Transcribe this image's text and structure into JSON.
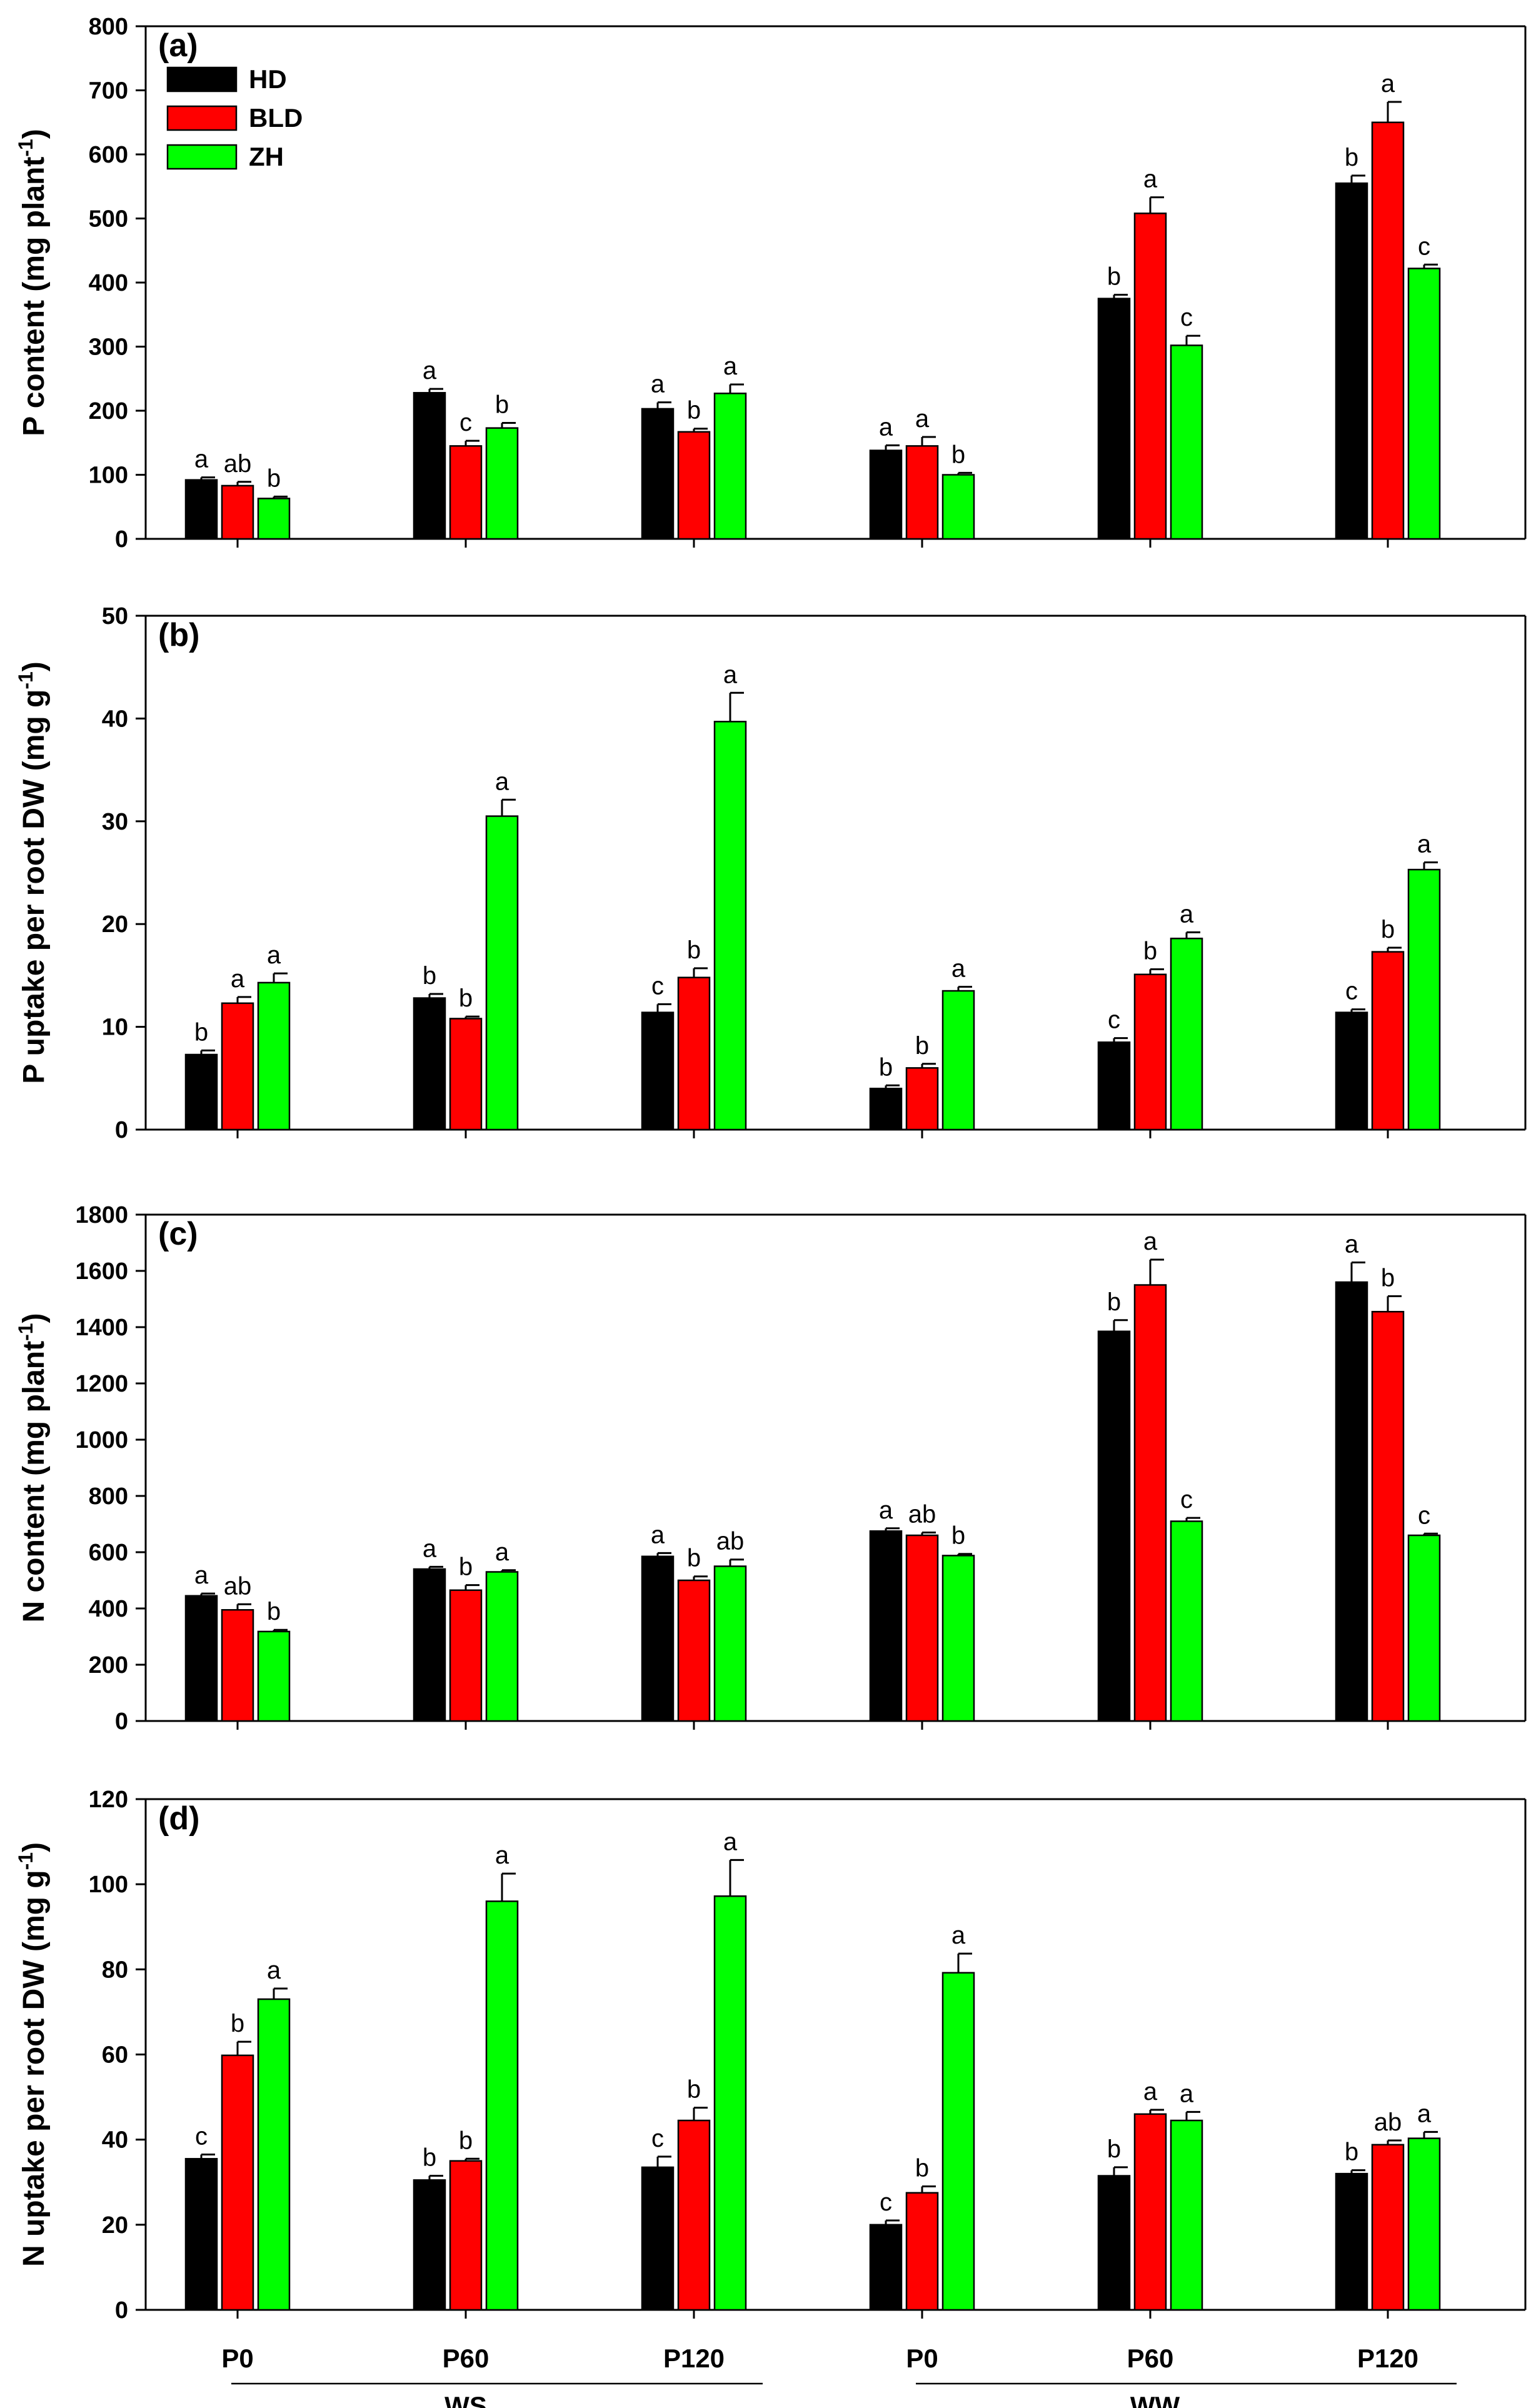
{
  "chart_data": [
    {
      "type": "bar",
      "panel_label": "(a)",
      "ylabel": "P content (mg plant",
      "ylabel_sup": "-1",
      "ylabel_close": ")",
      "ylim": [
        0,
        800
      ],
      "yticks": [
        0,
        100,
        200,
        300,
        400,
        500,
        600,
        700,
        800
      ],
      "categories": [
        "P0",
        "P60",
        "P120",
        "P0",
        "P60",
        "P120"
      ],
      "series": [
        {
          "name": "HD",
          "color": "#000000",
          "values": [
            92,
            228,
            203,
            138,
            375,
            555
          ],
          "errors": [
            4,
            6,
            10,
            8,
            6,
            12
          ],
          "letters": [
            "a",
            "a",
            "a",
            "a",
            "b",
            "b"
          ]
        },
        {
          "name": "BLD",
          "color": "#ff0000",
          "values": [
            83,
            145,
            167,
            145,
            508,
            650
          ],
          "errors": [
            6,
            8,
            5,
            14,
            25,
            32
          ],
          "letters": [
            "ab",
            "c",
            "b",
            "a",
            "a",
            "a"
          ]
        },
        {
          "name": "ZH",
          "color": "#00ff00",
          "values": [
            63,
            173,
            227,
            100,
            302,
            422
          ],
          "errors": [
            3,
            8,
            14,
            3,
            15,
            6
          ],
          "letters": [
            "b",
            "b",
            "a",
            "b",
            "c",
            "c"
          ]
        }
      ],
      "legend": {
        "position": "top-left"
      }
    },
    {
      "type": "bar",
      "panel_label": "(b)",
      "ylabel": "P uptake per root DW (mg g",
      "ylabel_sup": "-1",
      "ylabel_close": ")",
      "ylim": [
        0,
        50
      ],
      "yticks": [
        0,
        10,
        20,
        30,
        40,
        50
      ],
      "categories": [
        "P0",
        "P60",
        "P120",
        "P0",
        "P60",
        "P120"
      ],
      "series": [
        {
          "name": "HD",
          "color": "#000000",
          "values": [
            7.3,
            12.8,
            11.4,
            4.0,
            8.5,
            11.4
          ],
          "errors": [
            0.4,
            0.4,
            0.8,
            0.3,
            0.4,
            0.3
          ],
          "letters": [
            "b",
            "b",
            "c",
            "b",
            "c",
            "c"
          ]
        },
        {
          "name": "BLD",
          "color": "#ff0000",
          "values": [
            12.3,
            10.8,
            14.8,
            6.0,
            15.1,
            17.3
          ],
          "errors": [
            0.6,
            0.2,
            0.9,
            0.4,
            0.5,
            0.4
          ],
          "letters": [
            "a",
            "b",
            "b",
            "b",
            "b",
            "b"
          ]
        },
        {
          "name": "ZH",
          "color": "#00ff00",
          "values": [
            14.3,
            30.5,
            39.7,
            13.5,
            18.6,
            25.3
          ],
          "errors": [
            0.9,
            1.6,
            2.8,
            0.4,
            0.6,
            0.7
          ],
          "letters": [
            "a",
            "a",
            "a",
            "a",
            "a",
            "a"
          ]
        }
      ]
    },
    {
      "type": "bar",
      "panel_label": "(c)",
      "ylabel": "N content (mg plant",
      "ylabel_sup": "-1",
      "ylabel_close": ")",
      "ylim": [
        0,
        1800
      ],
      "yticks": [
        0,
        200,
        400,
        600,
        800,
        1000,
        1200,
        1400,
        1600,
        1800
      ],
      "categories": [
        "P0",
        "P60",
        "P120",
        "P0",
        "P60",
        "P120"
      ],
      "series": [
        {
          "name": "HD",
          "color": "#000000",
          "values": [
            445,
            540,
            585,
            675,
            1385,
            1560
          ],
          "errors": [
            8,
            8,
            12,
            10,
            40,
            70
          ],
          "letters": [
            "a",
            "a",
            "a",
            "a",
            "b",
            "a"
          ]
        },
        {
          "name": "BLD",
          "color": "#ff0000",
          "values": [
            395,
            465,
            500,
            660,
            1550,
            1455
          ],
          "errors": [
            20,
            18,
            14,
            10,
            90,
            55
          ],
          "letters": [
            "ab",
            "b",
            "b",
            "ab",
            "a",
            "b"
          ]
        },
        {
          "name": "ZH",
          "color": "#00ff00",
          "values": [
            318,
            530,
            550,
            588,
            710,
            660
          ],
          "errors": [
            6,
            6,
            24,
            6,
            12,
            6
          ],
          "letters": [
            "b",
            "a",
            "ab",
            "b",
            "c",
            "c"
          ]
        }
      ]
    },
    {
      "type": "bar",
      "panel_label": "(d)",
      "ylabel": "N uptake per root DW (mg g",
      "ylabel_sup": "-1",
      "ylabel_close": ")",
      "ylim": [
        0,
        120
      ],
      "yticks": [
        0,
        20,
        40,
        60,
        80,
        100,
        120
      ],
      "categories": [
        "P0",
        "P60",
        "P120",
        "P0",
        "P60",
        "P120"
      ],
      "series": [
        {
          "name": "HD",
          "color": "#000000",
          "values": [
            35.5,
            30.5,
            33.5,
            20.0,
            31.5,
            32.0
          ],
          "errors": [
            1.0,
            1.0,
            2.5,
            1.0,
            2.0,
            0.8
          ],
          "letters": [
            "c",
            "b",
            "c",
            "c",
            "b",
            "b"
          ]
        },
        {
          "name": "BLD",
          "color": "#ff0000",
          "values": [
            59.8,
            35.0,
            44.5,
            27.5,
            46.0,
            38.8
          ],
          "errors": [
            3.2,
            0.5,
            3.0,
            1.5,
            1.0,
            1.0
          ],
          "letters": [
            "b",
            "b",
            "b",
            "b",
            "a",
            "ab"
          ]
        },
        {
          "name": "ZH",
          "color": "#00ff00",
          "values": [
            73.0,
            96.0,
            97.2,
            79.2,
            44.5,
            40.3
          ],
          "errors": [
            2.5,
            6.5,
            8.5,
            4.5,
            2.0,
            1.5
          ],
          "letters": [
            "a",
            "a",
            "a",
            "a",
            "a",
            "a"
          ]
        }
      ]
    }
  ],
  "x_groups": [
    {
      "label": "WS",
      "categories": [
        0,
        1,
        2
      ]
    },
    {
      "label": "WW",
      "categories": [
        3,
        4,
        5
      ]
    }
  ]
}
